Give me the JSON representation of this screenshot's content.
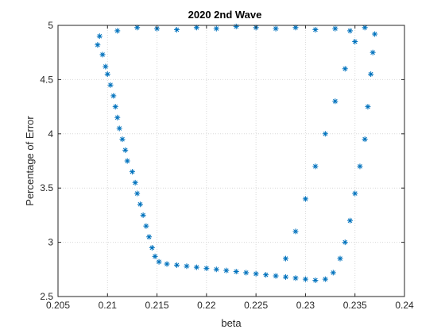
{
  "chart_data": {
    "type": "scatter",
    "title": "2020 2nd Wave",
    "xlabel": "beta",
    "ylabel": "Percentage of Error",
    "xlim": [
      0.205,
      0.24
    ],
    "ylim": [
      2.5,
      5
    ],
    "xticks": [
      "0.205",
      "0.21",
      "0.215",
      "0.22",
      "0.225",
      "0.23",
      "0.235",
      "0.24"
    ],
    "yticks": [
      "2.5",
      "3",
      "3.5",
      "4",
      "4.5",
      "5"
    ],
    "grid": true,
    "marker": "asterisk",
    "color": "#0072bd",
    "series": [
      {
        "points": [
          [
            0.209,
            4.82
          ],
          [
            0.2092,
            4.9
          ],
          [
            0.2095,
            4.73
          ],
          [
            0.2098,
            4.62
          ],
          [
            0.21,
            4.55
          ],
          [
            0.2103,
            4.45
          ],
          [
            0.2106,
            4.35
          ],
          [
            0.2108,
            4.25
          ],
          [
            0.211,
            4.15
          ],
          [
            0.2112,
            4.05
          ],
          [
            0.2115,
            3.95
          ],
          [
            0.2118,
            3.85
          ],
          [
            0.212,
            3.75
          ],
          [
            0.2125,
            3.65
          ],
          [
            0.2128,
            3.55
          ],
          [
            0.213,
            3.45
          ],
          [
            0.2133,
            3.35
          ],
          [
            0.2136,
            3.25
          ],
          [
            0.2139,
            3.15
          ],
          [
            0.2142,
            3.05
          ],
          [
            0.2145,
            2.95
          ],
          [
            0.2148,
            2.87
          ],
          [
            0.2152,
            2.82
          ],
          [
            0.216,
            2.8
          ],
          [
            0.217,
            2.79
          ],
          [
            0.218,
            2.78
          ],
          [
            0.219,
            2.77
          ],
          [
            0.22,
            2.76
          ],
          [
            0.221,
            2.75
          ],
          [
            0.222,
            2.74
          ],
          [
            0.223,
            2.73
          ],
          [
            0.224,
            2.72
          ],
          [
            0.225,
            2.71
          ],
          [
            0.226,
            2.7
          ],
          [
            0.227,
            2.69
          ],
          [
            0.228,
            2.68
          ],
          [
            0.229,
            2.67
          ],
          [
            0.23,
            2.66
          ],
          [
            0.231,
            2.65
          ],
          [
            0.232,
            2.66
          ],
          [
            0.2328,
            2.72
          ],
          [
            0.2335,
            2.85
          ],
          [
            0.234,
            3.0
          ],
          [
            0.2345,
            3.2
          ],
          [
            0.235,
            3.45
          ],
          [
            0.2355,
            3.7
          ],
          [
            0.236,
            3.95
          ],
          [
            0.2363,
            4.25
          ],
          [
            0.2366,
            4.55
          ],
          [
            0.2368,
            4.75
          ],
          [
            0.237,
            4.92
          ],
          [
            0.236,
            4.98
          ],
          [
            0.235,
            4.85
          ],
          [
            0.234,
            4.6
          ],
          [
            0.233,
            4.3
          ],
          [
            0.232,
            4.0
          ],
          [
            0.231,
            3.7
          ],
          [
            0.23,
            3.4
          ],
          [
            0.229,
            3.1
          ],
          [
            0.228,
            2.85
          ],
          [
            0.211,
            4.95
          ],
          [
            0.213,
            4.98
          ],
          [
            0.215,
            4.97
          ],
          [
            0.217,
            4.96
          ],
          [
            0.219,
            4.98
          ],
          [
            0.221,
            4.97
          ],
          [
            0.223,
            4.99
          ],
          [
            0.225,
            4.98
          ],
          [
            0.227,
            4.97
          ],
          [
            0.229,
            4.98
          ],
          [
            0.231,
            4.96
          ],
          [
            0.233,
            4.97
          ],
          [
            0.2345,
            4.95
          ]
        ]
      }
    ]
  }
}
